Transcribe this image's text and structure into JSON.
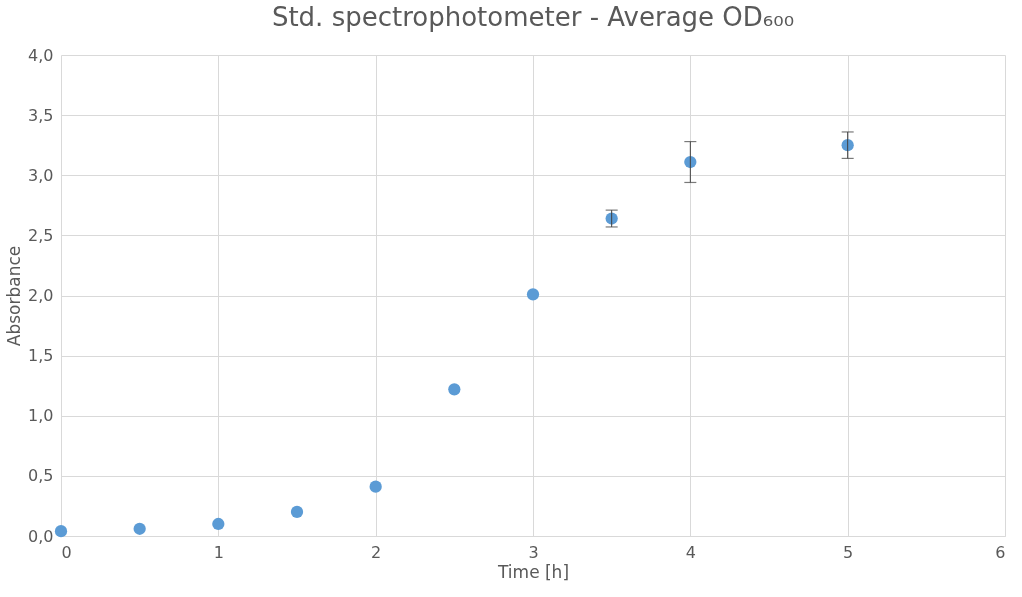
{
  "chart_data": {
    "type": "scatter",
    "title": "Std. spectrophotometer - Average OD₆₀₀",
    "xlabel": "Time [h]",
    "ylabel": "Absorbance",
    "x": [
      0,
      0.5,
      1,
      1.5,
      2,
      2.5,
      3,
      3.5,
      4,
      5
    ],
    "series": [
      {
        "color": "#5b9bd5",
        "values": [
          0.04,
          0.06,
          0.1,
          0.2,
          0.41,
          1.22,
          2.01,
          2.64,
          3.11,
          3.25
        ],
        "errors": [
          null,
          null,
          null,
          null,
          null,
          null,
          null,
          0.07,
          0.17,
          0.11
        ]
      }
    ],
    "xlim": [
      0,
      6
    ],
    "xticks": [
      0,
      1,
      2,
      3,
      4,
      5,
      6
    ],
    "ylim": [
      0,
      4
    ],
    "yticks": [
      {
        "value": 0,
        "label": "0,0"
      },
      {
        "value": 0.5,
        "label": "0,5"
      },
      {
        "value": 1,
        "label": "1,0"
      },
      {
        "value": 1.5,
        "label": "1,5"
      },
      {
        "value": 2,
        "label": "2,0"
      },
      {
        "value": 2.5,
        "label": "2,5"
      },
      {
        "value": 3,
        "label": "3,0"
      },
      {
        "value": 3.5,
        "label": "3,5"
      },
      {
        "value": 4,
        "label": "4,0"
      }
    ],
    "grid": true,
    "marker": "circle"
  }
}
